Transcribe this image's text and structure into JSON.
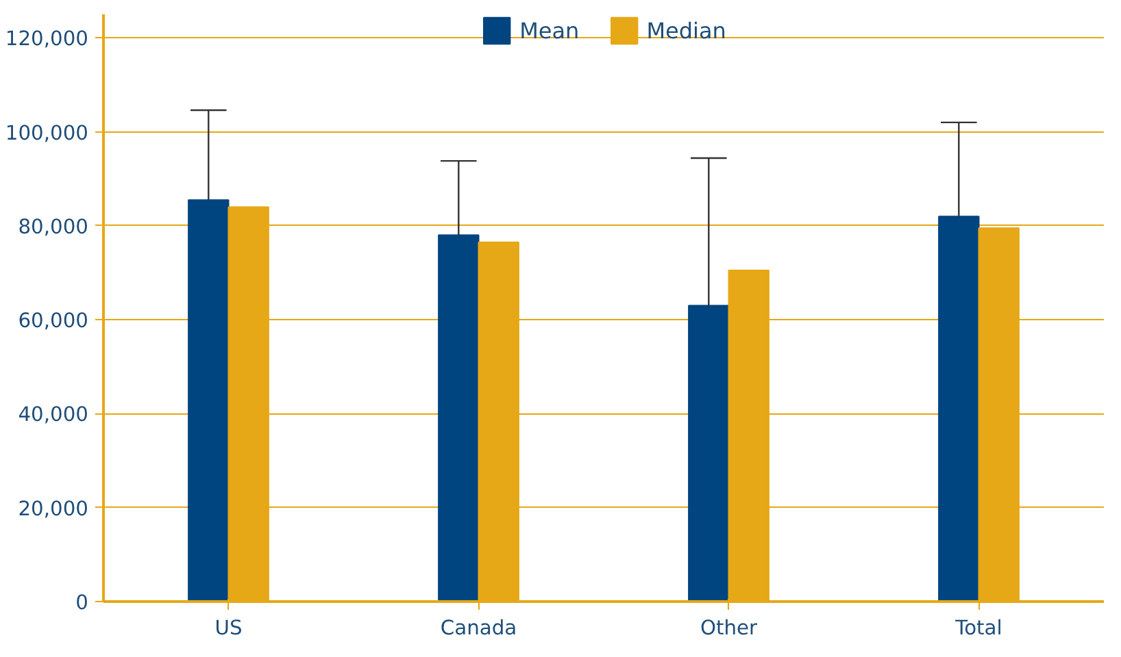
{
  "chart_data": {
    "type": "bar",
    "categories": [
      "US",
      "Canada",
      "Other",
      "Total"
    ],
    "series": [
      {
        "name": "Mean",
        "color": "#00457f",
        "values": [
          85500,
          78000,
          63000,
          82000
        ],
        "errors": [
          [
            85500,
            104600
          ],
          [
            78000,
            93800
          ],
          [
            63000,
            94400
          ],
          [
            82000,
            102000
          ]
        ]
      },
      {
        "name": "Median",
        "color": "#e6a817",
        "values": [
          84000,
          76500,
          70500,
          79500
        ]
      }
    ],
    "ylim": [
      0,
      125000
    ],
    "yticks": [
      0,
      {
        "value": 20000,
        "label": "20,000"
      },
      {
        "value": 40000,
        "label": "40,000"
      },
      {
        "value": 60000,
        "label": "60,000"
      },
      {
        "value": 80000,
        "label": "80,000"
      },
      {
        "value": 100000,
        "label": "100,000"
      },
      {
        "value": 120000,
        "label": "120,000"
      }
    ],
    "grid": "y",
    "legend": "top"
  }
}
